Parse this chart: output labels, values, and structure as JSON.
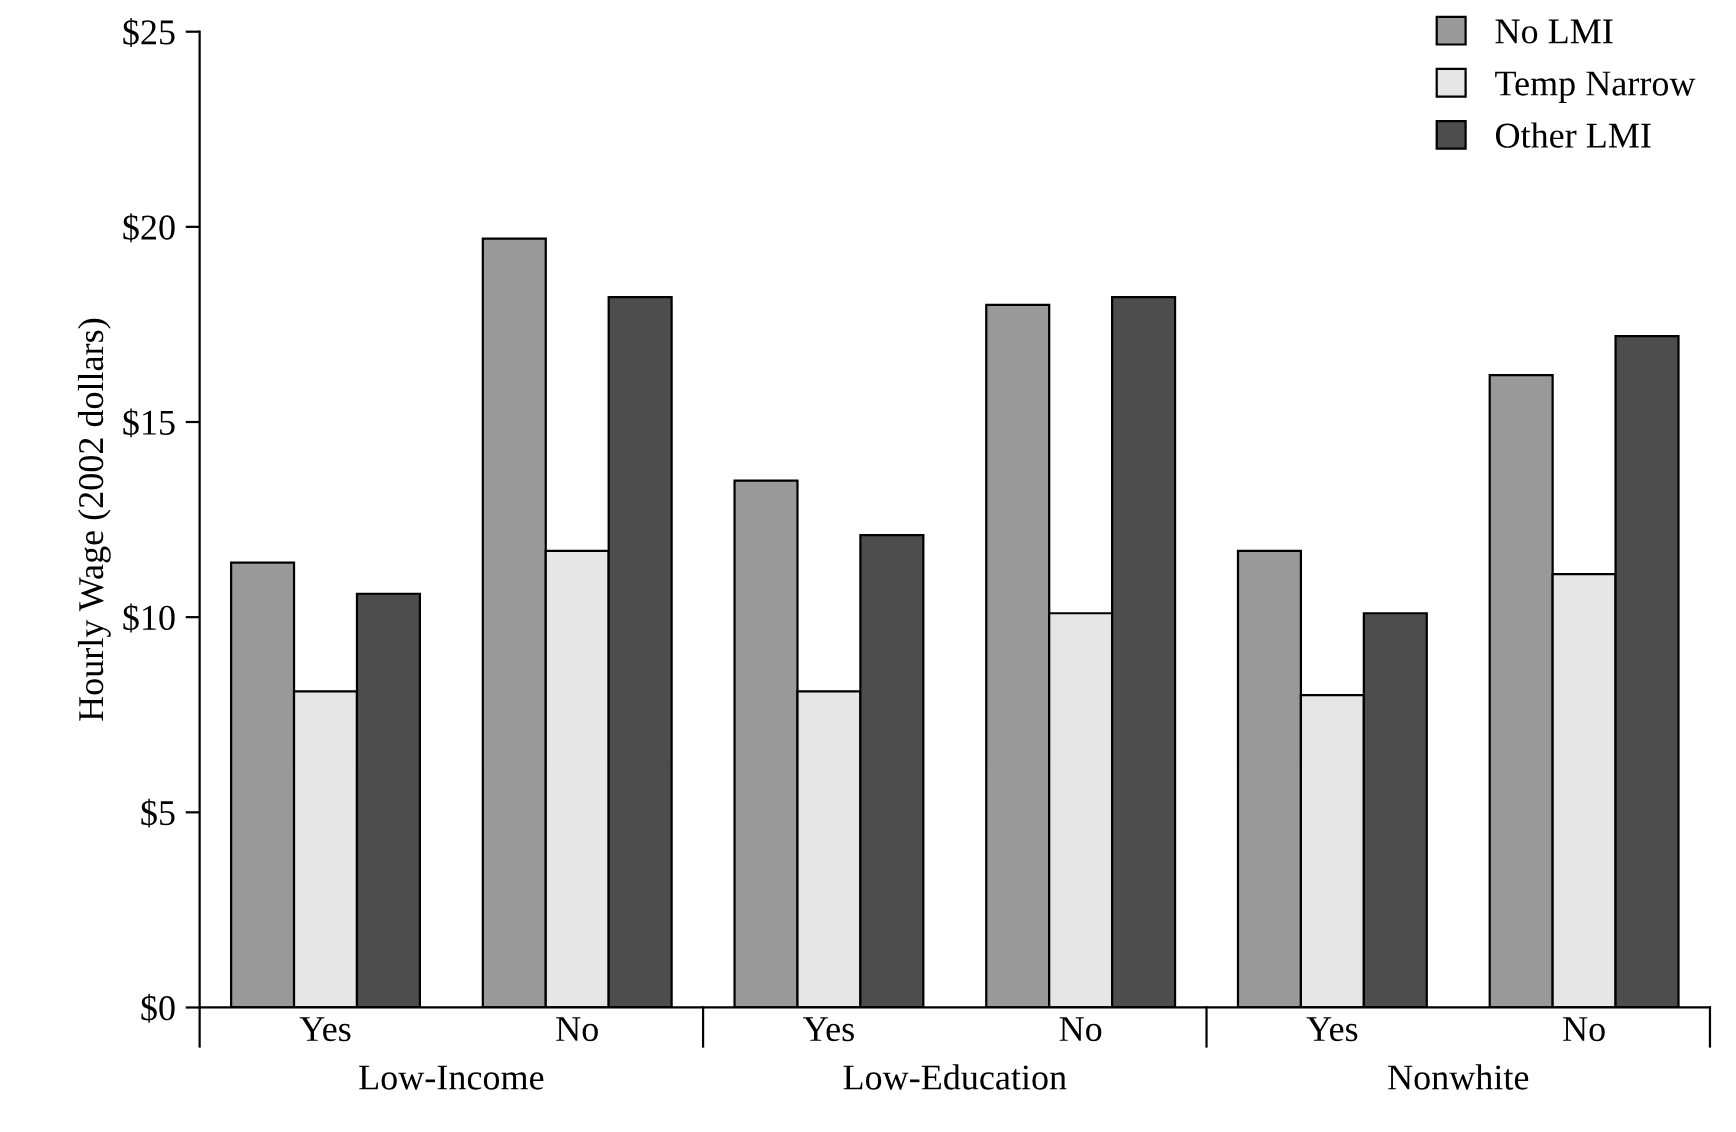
{
  "chart_data": {
    "type": "bar",
    "ylabel": "Hourly Wage (2002 dollars)",
    "categories": [
      "Yes",
      "No",
      "Yes",
      "No",
      "Yes",
      "No"
    ],
    "annotations": [
      "Low-Income",
      "Low-Education",
      "Nonwhite"
    ],
    "series": [
      {
        "name": "No LMI",
        "color": "#999999",
        "values": [
          11.4,
          19.7,
          13.5,
          18.0,
          11.7,
          16.2
        ]
      },
      {
        "name": "Temp Narrow",
        "color": "#e6e6e6",
        "values": [
          8.1,
          11.7,
          8.1,
          10.1,
          8.0,
          11.1
        ]
      },
      {
        "name": "Other LMI",
        "color": "#4d4d4d",
        "values": [
          10.6,
          18.2,
          12.1,
          18.2,
          10.1,
          17.2
        ]
      }
    ],
    "ylim": [
      0,
      25
    ],
    "yticks": [
      {
        "value": 0,
        "label": "$0"
      },
      {
        "value": 5,
        "label": "$5"
      },
      {
        "value": 10,
        "label": "$10"
      },
      {
        "value": 15,
        "label": "$15"
      },
      {
        "value": 20,
        "label": "$20"
      },
      {
        "value": 25,
        "label": "$25"
      }
    ],
    "grid": false,
    "legend": "top right"
  }
}
